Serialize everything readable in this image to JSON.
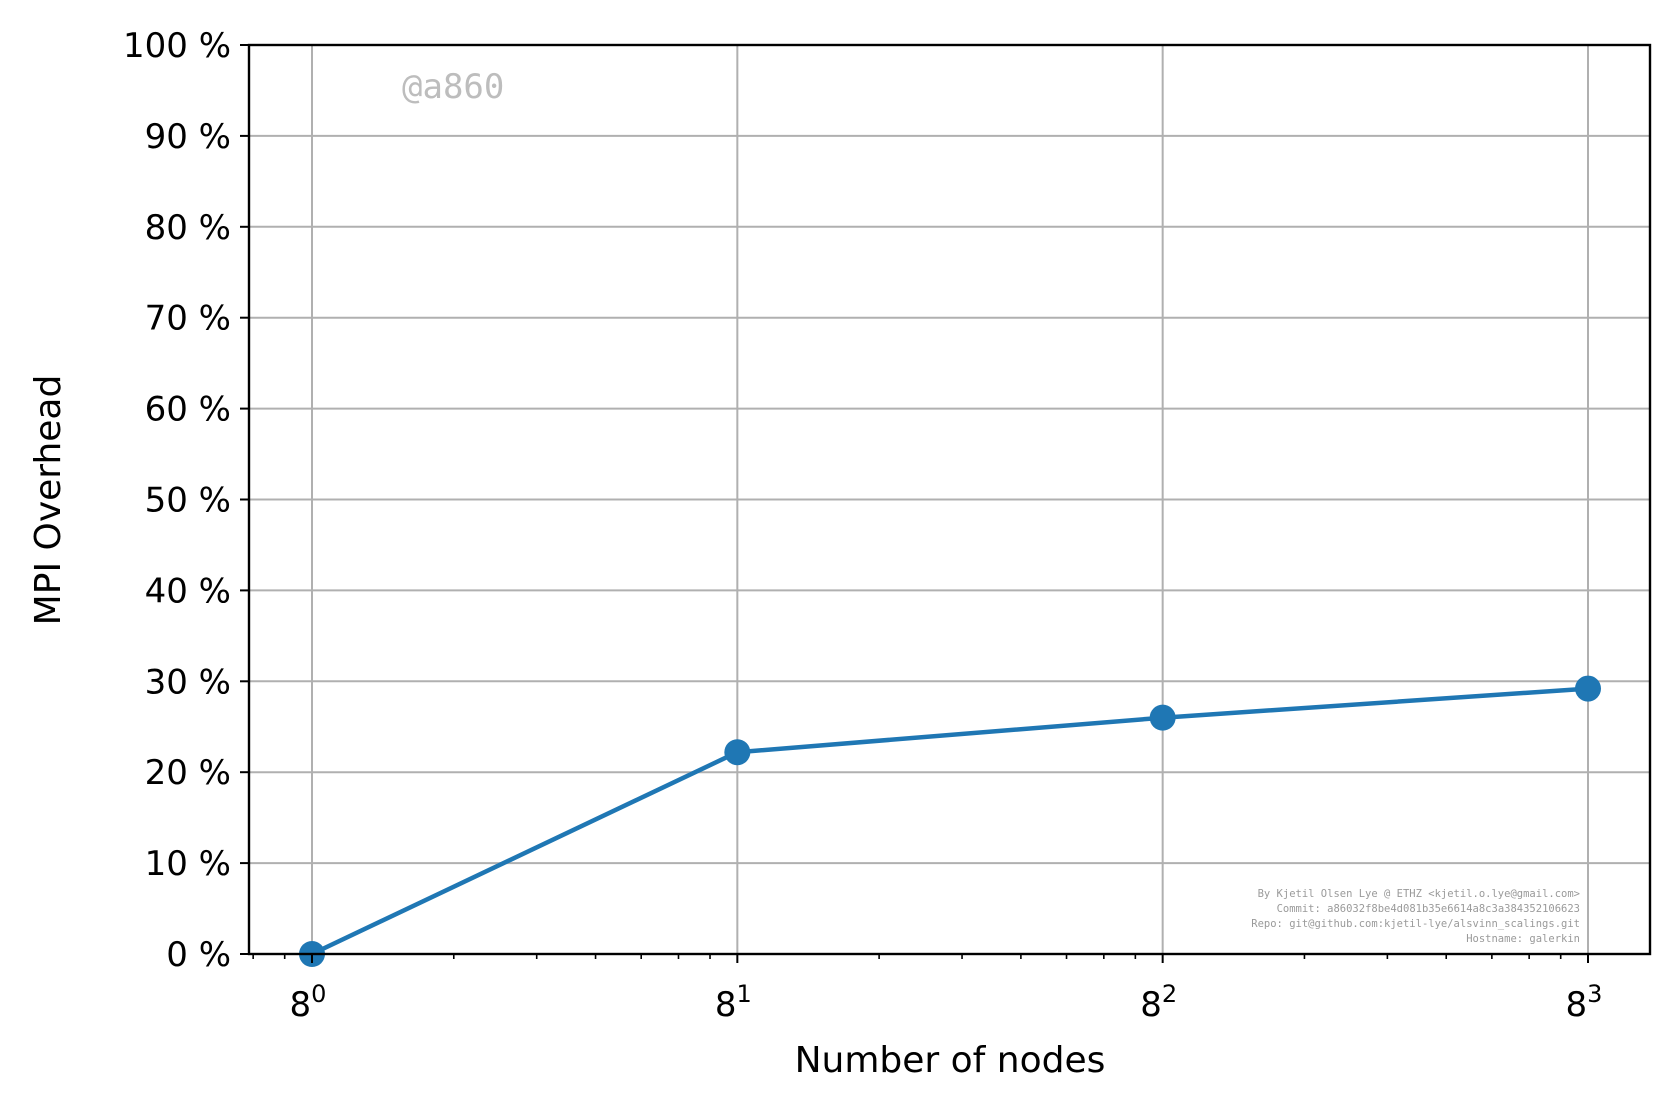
{
  "chart_data": {
    "type": "line",
    "xlabel": "Number of nodes",
    "ylabel": "MPI Overhead",
    "x_scale": "log8",
    "x": [
      1,
      8,
      64,
      512
    ],
    "x_tick_labels": [
      {
        "base": "8",
        "exp": "0"
      },
      {
        "base": "8",
        "exp": "1"
      },
      {
        "base": "8",
        "exp": "2"
      },
      {
        "base": "8",
        "exp": "3"
      }
    ],
    "y_ticks": [
      0,
      10,
      20,
      30,
      40,
      50,
      60,
      70,
      80,
      90,
      100
    ],
    "y_tick_labels": [
      "0 %",
      "10 %",
      "20 %",
      "30 %",
      "40 %",
      "50 %",
      "60 %",
      "70 %",
      "80 %",
      "90 %",
      "100 %"
    ],
    "ylim": [
      0,
      100
    ],
    "grid": true,
    "series": [
      {
        "values": [
          0,
          22.2,
          26,
          29.2
        ],
        "color": "#1f77b4"
      }
    ]
  },
  "watermark": "@a860",
  "credits": [
    "By Kjetil Olsen Lye @ ETHZ <kjetil.o.lye@gmail.com>",
    "Commit: a86032f8be4d081b35e6614a8c3a384352106623",
    "Repo: git@github.com:kjetil-lye/alsvinn_scalings.git",
    "Hostname: galerkin"
  ]
}
